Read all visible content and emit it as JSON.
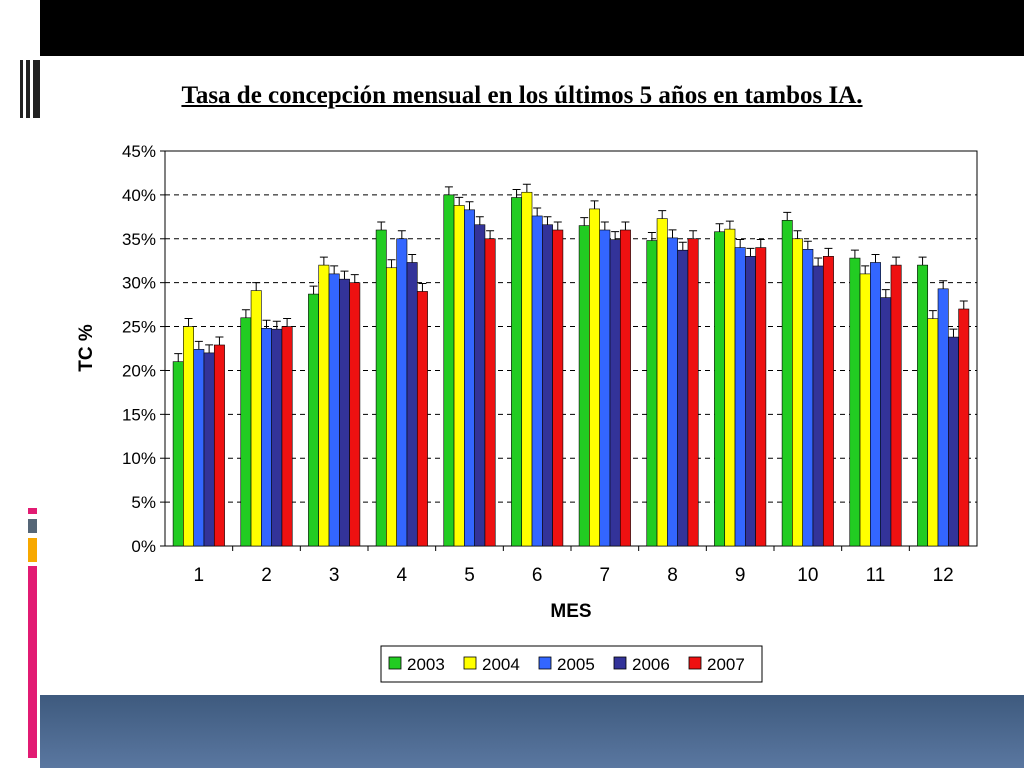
{
  "chart_data": {
    "type": "bar",
    "title": "Tasa de concepción mensual en los últimos 5 años en tambos IA.",
    "xlabel": "MES",
    "ylabel": "TC %",
    "ylim": [
      0,
      45
    ],
    "y_ticks": [
      "0%",
      "5%",
      "10%",
      "15%",
      "20%",
      "25%",
      "30%",
      "35%",
      "40%",
      "45%"
    ],
    "grid": "dashed horizontal",
    "legend_position": "bottom",
    "error_bars": true,
    "categories": [
      "1",
      "2",
      "3",
      "4",
      "5",
      "6",
      "7",
      "8",
      "9",
      "10",
      "11",
      "12"
    ],
    "series": [
      {
        "name": "2003",
        "color": "#22cc22",
        "values": [
          21,
          26,
          28.7,
          36,
          40,
          39.7,
          36.5,
          34.8,
          35.8,
          37.1,
          32.8,
          32
        ]
      },
      {
        "name": "2004",
        "color": "#ffff00",
        "values": [
          25,
          29.1,
          32,
          31.7,
          38.8,
          40.3,
          38.4,
          37.3,
          36.1,
          35,
          31,
          25.9
        ]
      },
      {
        "name": "2005",
        "color": "#3366ff",
        "values": [
          22.4,
          24.8,
          31,
          35,
          38.3,
          37.6,
          36,
          35.1,
          34,
          33.8,
          32.3,
          29.3
        ]
      },
      {
        "name": "2006",
        "color": "#333399",
        "values": [
          22,
          24.7,
          30.4,
          32.3,
          36.6,
          36.6,
          34.9,
          33.7,
          33,
          31.9,
          28.3,
          23.8
        ]
      },
      {
        "name": "2007",
        "color": "#ee1111",
        "values": [
          22.9,
          25,
          30,
          29,
          35,
          36,
          36,
          35,
          34,
          33,
          32,
          27
        ]
      }
    ]
  }
}
